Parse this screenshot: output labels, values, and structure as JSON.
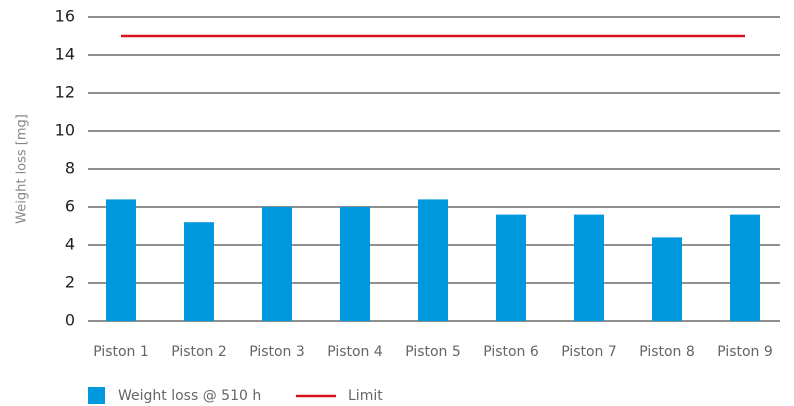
{
  "chart_data": {
    "type": "bar",
    "ylabel": "Weight loss [mg]",
    "categories": [
      "Piston 1",
      "Piston 2",
      "Piston 3",
      "Piston 4",
      "Piston 5",
      "Piston 6",
      "Piston 7",
      "Piston 8",
      "Piston 9"
    ],
    "series": [
      {
        "name": "Weight loss @ 510 h",
        "color": "#0099dd",
        "type": "bar",
        "values": [
          6.4,
          5.2,
          6.0,
          6.0,
          6.4,
          5.6,
          5.6,
          4.4,
          5.6
        ]
      },
      {
        "name": "Limit",
        "color": "#d7141e",
        "type": "line",
        "values": [
          15,
          15,
          15,
          15,
          15,
          15,
          15,
          15,
          15
        ]
      }
    ],
    "ylim": [
      0,
      16
    ],
    "yticks": [
      0,
      2,
      4,
      6,
      8,
      10,
      12,
      14,
      16
    ],
    "grid": true
  }
}
